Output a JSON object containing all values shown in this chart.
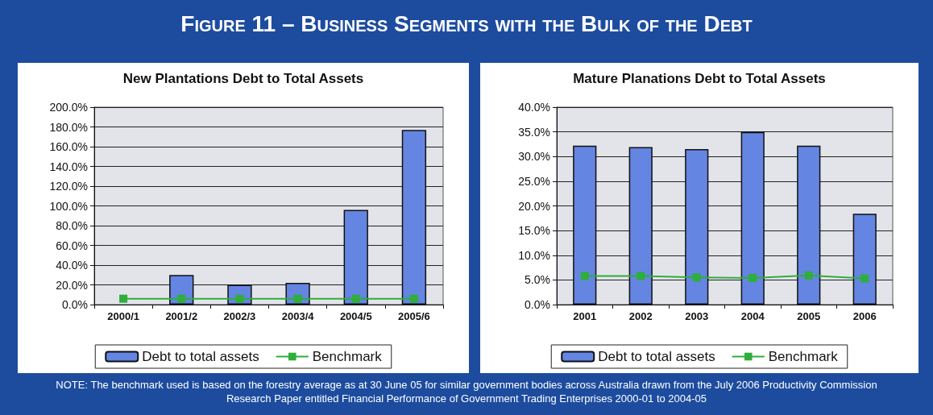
{
  "chart_data": [
    {
      "type": "bar",
      "title": "New Plantations Debt to Total Assets",
      "annotations": [
        "Figure 11 – Business Segments with the Bulk of the Debt",
        "NOTE: The benchmark used is based on the forestry average as at 30 June 05 for similar government bodies across Australia drawn from the July 2006 Productivity Commission Research Paper entitled Financial Performance of Government Trading Enterprises 2000-01 to 2004-05"
      ],
      "categories": [
        "2000/1",
        "2001/2",
        "2002/3",
        "2003/4",
        "2004/5",
        "2005/6"
      ],
      "series": [
        {
          "name": "Debt to total assets",
          "color": "#6485e2",
          "values": [
            null,
            30,
            20,
            22,
            96,
            177
          ]
        },
        {
          "name": "Benchmark",
          "type": "line",
          "color": "#2fae3a",
          "marker": "square",
          "values": [
            6,
            6,
            6,
            6,
            6,
            6
          ]
        }
      ],
      "ylim": [
        0,
        200
      ],
      "yticks": [
        {
          "value": 0,
          "label": "0.0%"
        },
        {
          "value": 20,
          "label": "20.0%"
        },
        {
          "value": 40,
          "label": "40.0%"
        },
        {
          "value": 60,
          "label": "60.0%"
        },
        {
          "value": 80,
          "label": "80.0%"
        },
        {
          "value": 100,
          "label": "100.0%"
        },
        {
          "value": 120,
          "label": "120.0%"
        },
        {
          "value": 140,
          "label": "140.0%"
        },
        {
          "value": 160,
          "label": "160.0%"
        },
        {
          "value": 180,
          "label": "180.0%"
        },
        {
          "value": 200,
          "label": "200.0%"
        }
      ],
      "grid": "y",
      "legend": "bottom"
    },
    {
      "type": "bar",
      "title": "Mature Planations Debt to Total Assets",
      "categories": [
        "2001",
        "2002",
        "2003",
        "2004",
        "2005",
        "2006"
      ],
      "series": [
        {
          "name": "Debt to total assets",
          "color": "#6485e2",
          "values": [
            32.2,
            31.9,
            31.5,
            35.0,
            32.2,
            18.4
          ]
        },
        {
          "name": "Benchmark",
          "type": "line",
          "color": "#2fae3a",
          "marker": "square",
          "values": [
            5.8,
            5.8,
            5.5,
            5.4,
            5.9,
            5.3
          ]
        }
      ],
      "ylim": [
        0,
        40
      ],
      "yticks": [
        {
          "value": 0,
          "label": "0.0%"
        },
        {
          "value": 5,
          "label": "5.0%"
        },
        {
          "value": 10,
          "label": "10.0%"
        },
        {
          "value": 15,
          "label": "15.0%"
        },
        {
          "value": 20,
          "label": "20.0%"
        },
        {
          "value": 25,
          "label": "25.0%"
        },
        {
          "value": 30,
          "label": "30.0%"
        },
        {
          "value": 35,
          "label": "35.0%"
        },
        {
          "value": 40,
          "label": "40.0%"
        }
      ],
      "grid": "y",
      "legend": "bottom"
    }
  ]
}
